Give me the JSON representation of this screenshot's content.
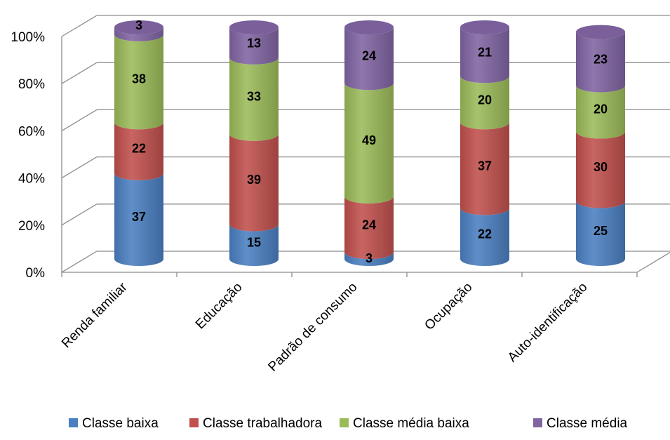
{
  "chart_data": {
    "type": "bar",
    "stacked": true,
    "percent_stacked": true,
    "three_d": true,
    "shape": "cylinder",
    "categories": [
      "Renda familiar",
      "Educação",
      "Padrão de consumo",
      "Ocupação",
      "Auto-identificação"
    ],
    "series": [
      {
        "name": "Classe baixa",
        "color": "#4a7fc1",
        "values": [
          37,
          15,
          3,
          22,
          25
        ]
      },
      {
        "name": "Classe trabalhadora",
        "color": "#c0504d",
        "values": [
          22,
          39,
          24,
          37,
          30
        ]
      },
      {
        "name": "Classe média baixa",
        "color": "#9bbb59",
        "values": [
          38,
          33,
          49,
          20,
          20
        ]
      },
      {
        "name": "Classe média",
        "color": "#8064a2",
        "values": [
          3,
          13,
          24,
          21,
          23
        ]
      }
    ],
    "ylim": [
      0,
      100
    ],
    "yticks": [
      "0%",
      "20%",
      "40%",
      "60%",
      "80%",
      "100%"
    ],
    "grid": true,
    "legend_position": "bottom",
    "title": "",
    "xlabel": "",
    "ylabel": ""
  }
}
